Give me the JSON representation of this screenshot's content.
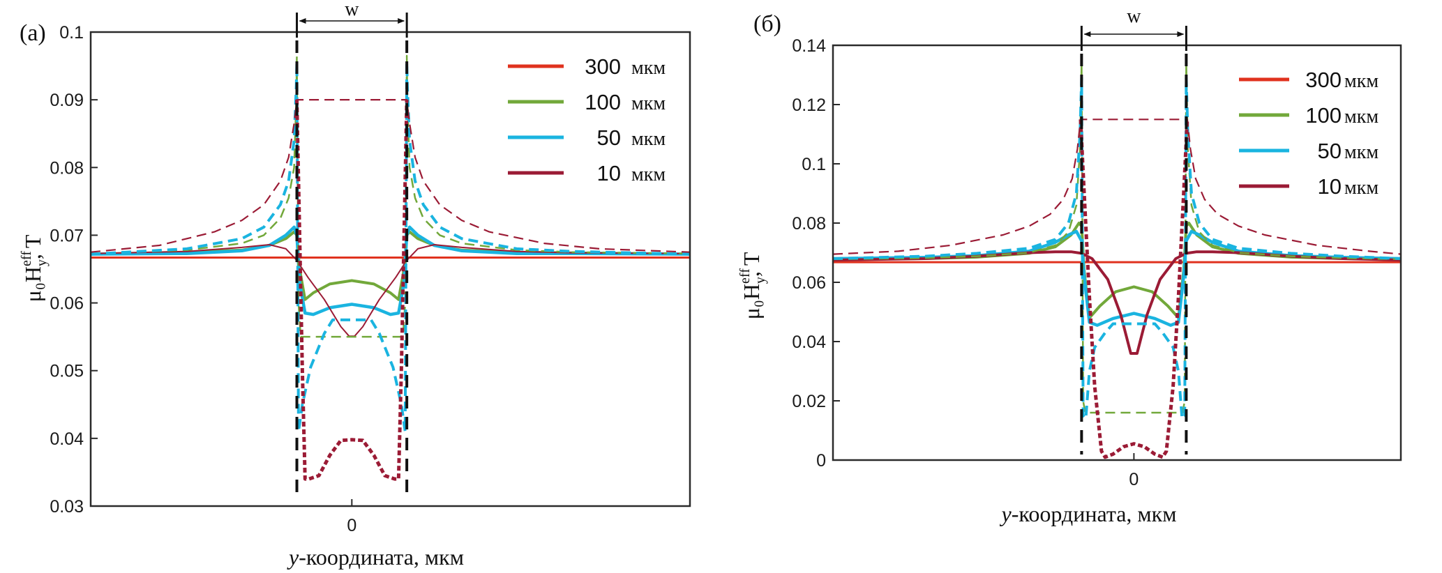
{
  "figure": {
    "panels": [
      "(a)",
      "(б)"
    ]
  },
  "chart_data": [
    {
      "type": "line",
      "panel_label": "(a)",
      "title": "",
      "xlabel_italic": "y",
      "xlabel_rest": "-координата, мкм",
      "ylabel_main": "μ₀H",
      "ylabel_sup": "eff",
      "ylabel_sub": "y",
      "ylabel_tail": ", Т",
      "x_unit_note": "x expressed in units of w/2 (strip edges at -1 and +1)",
      "xlim": [
        -4.75,
        6.15
      ],
      "ylim": [
        0.03,
        0.1
      ],
      "yticks": [
        0.03,
        0.04,
        0.05,
        0.06,
        0.07,
        0.08,
        0.09,
        0.1
      ],
      "ytick_labels": [
        "0.03",
        "0.04",
        "0.05",
        "0.06",
        "0.07",
        "0.08",
        "0.09",
        "0.1"
      ],
      "xticks": [
        0
      ],
      "xtick_labels": [
        "0"
      ],
      "width_marker": {
        "label": "w",
        "from": -1,
        "to": 1
      },
      "edge_lines": [
        -1,
        1
      ],
      "legend": {
        "placement": "top-right",
        "unit": "мкм",
        "entries": [
          {
            "label": "300",
            "color": "#e0321e"
          },
          {
            "label": "100",
            "color": "#72a83a"
          },
          {
            "label": "50",
            "color": "#1ab4e0"
          },
          {
            "label": "10",
            "color": "#9b1b35"
          }
        ]
      },
      "series": [
        {
          "name": "300 мкм",
          "style": "solid",
          "color": "#e0321e",
          "width": 3,
          "x": [
            -4.75,
            6.15
          ],
          "y": [
            0.0667,
            0.0667
          ]
        },
        {
          "name": "100 мкм (solid)",
          "style": "solid",
          "color": "#72a83a",
          "width": 4,
          "x": [
            -4.75,
            -3,
            -2,
            -1.5,
            -1.2,
            -1.05,
            -1.0,
            -0.95,
            -0.85,
            -0.7,
            -0.4,
            0,
            0.4,
            0.7,
            0.85,
            0.95,
            1.0,
            1.05,
            1.2,
            1.5,
            2,
            3,
            4,
            6.15
          ],
          "y": [
            0.0672,
            0.0675,
            0.0678,
            0.0685,
            0.0695,
            0.0705,
            0.07,
            0.065,
            0.0605,
            0.0615,
            0.0628,
            0.0633,
            0.0628,
            0.0615,
            0.0605,
            0.065,
            0.07,
            0.0705,
            0.0695,
            0.0685,
            0.0678,
            0.0675,
            0.0674,
            0.0672
          ]
        },
        {
          "name": "50 мкм (solid)",
          "style": "solid",
          "color": "#1ab4e0",
          "width": 4.5,
          "x": [
            -4.75,
            -3,
            -2,
            -1.5,
            -1.2,
            -1.05,
            -1.0,
            -0.95,
            -0.85,
            -0.7,
            -0.4,
            0,
            0.4,
            0.7,
            0.85,
            0.95,
            1.0,
            1.05,
            1.2,
            1.5,
            2,
            3,
            4,
            6.15
          ],
          "y": [
            0.0672,
            0.0673,
            0.0677,
            0.0685,
            0.07,
            0.0712,
            0.07,
            0.063,
            0.0585,
            0.0583,
            0.0593,
            0.0598,
            0.0593,
            0.0583,
            0.0585,
            0.063,
            0.07,
            0.0712,
            0.07,
            0.0685,
            0.0677,
            0.0673,
            0.0673,
            0.0672
          ]
        },
        {
          "name": "10 мкм (solid)",
          "style": "solid",
          "color": "#9b1b35",
          "width": 2,
          "x": [
            -4.75,
            -3,
            -2,
            -1.5,
            -1.2,
            -1.0,
            -0.8,
            -0.5,
            -0.2,
            -0.05,
            0.05,
            0.2,
            0.5,
            0.8,
            1.0,
            1.2,
            1.5,
            2,
            3,
            4,
            6.15
          ],
          "y": [
            0.0673,
            0.0676,
            0.0682,
            0.0686,
            0.068,
            0.0663,
            0.0638,
            0.0605,
            0.0565,
            0.0551,
            0.0551,
            0.0565,
            0.0605,
            0.0638,
            0.0663,
            0.068,
            0.0686,
            0.0682,
            0.0676,
            0.0674,
            0.0673
          ]
        },
        {
          "name": "100 мкм (dashed)",
          "style": "dashed",
          "color": "#72a83a",
          "width": 2.5,
          "x": [
            -4.75,
            -3,
            -2,
            -1.6,
            -1.3,
            -1.15,
            -1.05,
            -1.01,
            -1.0,
            -0.97,
            -0.93,
            0.93,
            0.97,
            1.0,
            1.01,
            1.05,
            1.15,
            1.3,
            1.6,
            2,
            3,
            4,
            6.15
          ],
          "y": [
            0.0673,
            0.0678,
            0.0688,
            0.07,
            0.0725,
            0.0755,
            0.08,
            0.09,
            0.0965,
            0.06,
            0.055,
            0.055,
            0.06,
            0.0965,
            0.09,
            0.08,
            0.0755,
            0.0725,
            0.07,
            0.0688,
            0.0678,
            0.0675,
            0.0673
          ]
        },
        {
          "name": "50 мкм (dashed)",
          "style": "dashed",
          "color": "#1ab4e0",
          "width": 4,
          "x": [
            -4.75,
            -3,
            -2,
            -1.6,
            -1.3,
            -1.15,
            -1.05,
            -1.01,
            -1.0,
            -0.97,
            -0.9,
            -0.75,
            -0.5,
            -0.35,
            0.35,
            0.5,
            0.75,
            0.9,
            0.97,
            1.0,
            1.01,
            1.05,
            1.15,
            1.3,
            1.6,
            2,
            3,
            4,
            6.15
          ],
          "y": [
            0.0672,
            0.068,
            0.0695,
            0.0712,
            0.0745,
            0.078,
            0.084,
            0.092,
            0.0955,
            0.041,
            0.045,
            0.0505,
            0.0555,
            0.0575,
            0.0575,
            0.0555,
            0.0505,
            0.045,
            0.041,
            0.0955,
            0.092,
            0.084,
            0.078,
            0.0745,
            0.0712,
            0.0695,
            0.068,
            0.0676,
            0.0672
          ]
        },
        {
          "name": "10 мкм (dashed)",
          "style": "dashed",
          "color": "#9b1b35",
          "width": 2.2,
          "x": [
            -4.75,
            -3.5,
            -2.5,
            -2,
            -1.6,
            -1.3,
            -1.15,
            -1.05,
            -1.0,
            1.0,
            1.05,
            1.15,
            1.3,
            1.6,
            2,
            2.5,
            3.5,
            4.5,
            6.15
          ],
          "y": [
            0.0675,
            0.0685,
            0.0705,
            0.0722,
            0.0745,
            0.078,
            0.0815,
            0.0865,
            0.09,
            0.09,
            0.0865,
            0.0815,
            0.078,
            0.0745,
            0.0722,
            0.0705,
            0.0688,
            0.068,
            0.0675
          ]
        },
        {
          "name": "10 мкм (dotted, inner)",
          "style": "dotted",
          "color": "#9b1b35",
          "width": 5,
          "x": [
            -1.0,
            -0.95,
            -0.9,
            -0.85,
            -0.78,
            -0.6,
            -0.4,
            -0.2,
            0,
            0.2,
            0.4,
            0.6,
            0.78,
            0.85,
            0.9,
            0.95,
            1.0
          ],
          "y": [
            0.09,
            0.07,
            0.05,
            0.034,
            0.034,
            0.0345,
            0.0375,
            0.0397,
            0.0398,
            0.0397,
            0.0375,
            0.0345,
            0.034,
            0.034,
            0.05,
            0.07,
            0.09
          ]
        }
      ]
    },
    {
      "type": "line",
      "panel_label": "(б)",
      "title": "",
      "xlabel_italic": "y",
      "xlabel_rest": "-координата, мкм",
      "ylabel_main": "μ₀H",
      "ylabel_sup": "eff",
      "ylabel_sub": "y",
      "ylabel_tail": ", Т",
      "x_unit_note": "x expressed in units of w/2 (strip edges at -1 and +1)",
      "xlim": [
        -5.75,
        5.1
      ],
      "ylim": [
        0,
        0.14
      ],
      "yticks": [
        0,
        0.02,
        0.04,
        0.06,
        0.08,
        0.1,
        0.12,
        0.14
      ],
      "ytick_labels": [
        "0",
        "0.02",
        "0.04",
        "0.06",
        "0.08",
        "0.1",
        "0.12",
        "0.14"
      ],
      "xticks": [
        0
      ],
      "xtick_labels": [
        "0"
      ],
      "width_marker": {
        "label": "w",
        "from": -1,
        "to": 1
      },
      "edge_lines": [
        -1,
        1
      ],
      "legend": {
        "placement": "top-right",
        "unit": "мкм",
        "entries": [
          {
            "label": "300",
            "color": "#e0321e"
          },
          {
            "label": "100",
            "color": "#72a83a"
          },
          {
            "label": "50",
            "color": "#1ab4e0"
          },
          {
            "label": "10",
            "color": "#9b1b35"
          }
        ]
      },
      "series": [
        {
          "name": "300 мкм",
          "style": "solid",
          "color": "#e0321e",
          "width": 3,
          "x": [
            -5.75,
            5.1
          ],
          "y": [
            0.0668,
            0.0668
          ]
        },
        {
          "name": "100 мкм (solid)",
          "style": "solid",
          "color": "#72a83a",
          "width": 4,
          "x": [
            -5.75,
            -4,
            -3,
            -2,
            -1.5,
            -1.2,
            -1.05,
            -1.0,
            -0.95,
            -0.85,
            -0.65,
            -0.35,
            0,
            0.35,
            0.65,
            0.85,
            0.95,
            1.0,
            1.05,
            1.2,
            1.5,
            2,
            3,
            4,
            5.1
          ],
          "y": [
            0.0678,
            0.068,
            0.0685,
            0.0698,
            0.072,
            0.076,
            0.08,
            0.079,
            0.064,
            0.048,
            0.052,
            0.0568,
            0.0585,
            0.0568,
            0.052,
            0.048,
            0.064,
            0.079,
            0.08,
            0.076,
            0.072,
            0.0698,
            0.0685,
            0.068,
            0.0678
          ]
        },
        {
          "name": "50 мкм (solid)",
          "style": "solid",
          "color": "#1ab4e0",
          "width": 4.5,
          "x": [
            -5.75,
            -4,
            -3,
            -2,
            -1.5,
            -1.25,
            -1.1,
            -1.0,
            -0.95,
            -0.85,
            -0.7,
            -0.4,
            0,
            0.4,
            0.7,
            0.85,
            0.95,
            1.0,
            1.1,
            1.25,
            1.5,
            2,
            3,
            4,
            5.1
          ],
          "y": [
            0.068,
            0.0684,
            0.069,
            0.0705,
            0.0735,
            0.076,
            0.0772,
            0.074,
            0.062,
            0.0465,
            0.0455,
            0.0478,
            0.0495,
            0.0478,
            0.0455,
            0.0465,
            0.062,
            0.074,
            0.0772,
            0.076,
            0.0735,
            0.0705,
            0.069,
            0.0684,
            0.068
          ]
        },
        {
          "name": "10 мкм (solid)",
          "style": "solid",
          "color": "#9b1b35",
          "width": 4,
          "x": [
            -5.75,
            -4,
            -3,
            -2,
            -1.5,
            -1.2,
            -1.0,
            -0.8,
            -0.5,
            -0.25,
            -0.06,
            0.06,
            0.25,
            0.5,
            0.8,
            1.0,
            1.2,
            1.5,
            2,
            3,
            4,
            5.1
          ],
          "y": [
            0.0675,
            0.068,
            0.0688,
            0.07,
            0.0703,
            0.0703,
            0.0698,
            0.068,
            0.061,
            0.049,
            0.036,
            0.036,
            0.049,
            0.061,
            0.068,
            0.0698,
            0.0703,
            0.0703,
            0.07,
            0.0688,
            0.068,
            0.0675
          ]
        },
        {
          "name": "100 мкм (dashed)",
          "style": "dashed",
          "color": "#72a83a",
          "width": 2.5,
          "x": [
            -5.75,
            -4,
            -3,
            -2,
            -1.5,
            -1.25,
            -1.1,
            -1.03,
            -1.0,
            -0.97,
            -0.93,
            0.93,
            0.97,
            1.0,
            1.03,
            1.1,
            1.25,
            1.5,
            2,
            3,
            4,
            5.1
          ],
          "y": [
            0.0678,
            0.0682,
            0.0688,
            0.07,
            0.0725,
            0.077,
            0.086,
            0.105,
            0.134,
            0.02,
            0.016,
            0.016,
            0.02,
            0.134,
            0.105,
            0.086,
            0.077,
            0.0725,
            0.07,
            0.0688,
            0.0682,
            0.0678
          ]
        },
        {
          "name": "50 мкм (dashed)",
          "style": "dashed",
          "color": "#1ab4e0",
          "width": 4,
          "x": [
            -5.75,
            -4,
            -3,
            -2,
            -1.5,
            -1.25,
            -1.1,
            -1.03,
            -1.0,
            -0.97,
            -0.92,
            -0.85,
            -0.75,
            -0.55,
            -0.4,
            0.4,
            0.55,
            0.75,
            0.85,
            0.92,
            0.97,
            1.0,
            1.03,
            1.1,
            1.25,
            1.5,
            2,
            3,
            4,
            5.1
          ],
          "y": [
            0.068,
            0.0688,
            0.0698,
            0.0715,
            0.0745,
            0.08,
            0.09,
            0.11,
            0.129,
            0.015,
            0.014,
            0.03,
            0.038,
            0.043,
            0.046,
            0.046,
            0.043,
            0.038,
            0.03,
            0.014,
            0.015,
            0.129,
            0.11,
            0.09,
            0.08,
            0.0745,
            0.0715,
            0.0698,
            0.0688,
            0.068
          ]
        },
        {
          "name": "10 мкм (dashed)",
          "style": "dashed",
          "color": "#9b1b35",
          "width": 2.2,
          "x": [
            -5.75,
            -4.5,
            -3.5,
            -2.5,
            -2,
            -1.6,
            -1.35,
            -1.18,
            -1.08,
            -1.02,
            1.02,
            1.08,
            1.18,
            1.35,
            1.6,
            2,
            2.5,
            3.5,
            4.5,
            5.1
          ],
          "y": [
            0.0695,
            0.0705,
            0.0725,
            0.076,
            0.079,
            0.083,
            0.088,
            0.095,
            0.105,
            0.115,
            0.115,
            0.105,
            0.095,
            0.088,
            0.083,
            0.079,
            0.076,
            0.0725,
            0.0705,
            0.0695
          ]
        },
        {
          "name": "10 мкм (dotted, inner)",
          "style": "dotted",
          "color": "#9b1b35",
          "width": 5,
          "x": [
            -1.02,
            -0.95,
            -0.85,
            -0.75,
            -0.62,
            -0.55,
            -0.4,
            -0.2,
            0,
            0.2,
            0.4,
            0.55,
            0.62,
            0.75,
            0.85,
            0.95,
            1.02
          ],
          "y": [
            0.115,
            0.09,
            0.055,
            0.025,
            0.003,
            0.001,
            0.002,
            0.0045,
            0.0055,
            0.0045,
            0.002,
            0.001,
            0.003,
            0.025,
            0.055,
            0.09,
            0.115
          ]
        }
      ]
    }
  ]
}
